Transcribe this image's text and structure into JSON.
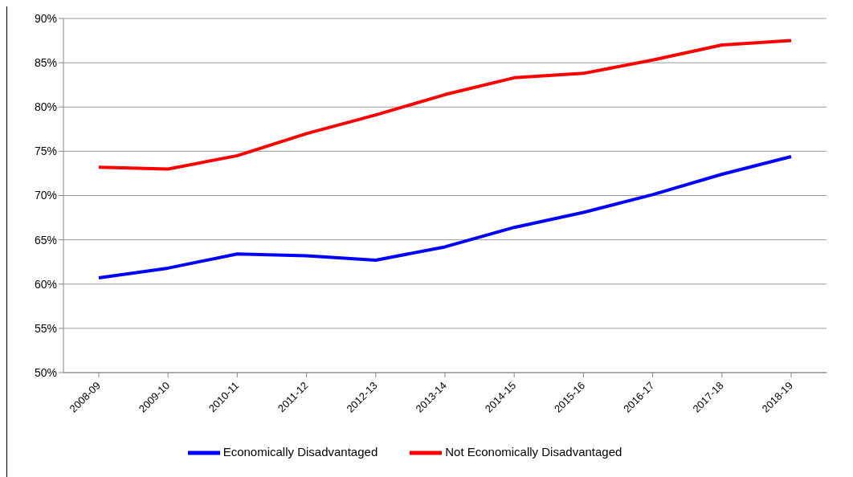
{
  "chart_data": {
    "type": "line",
    "categories": [
      "2008-09",
      "2009-10",
      "2010-11",
      "2011-12",
      "2012-13",
      "2013-14",
      "2014-15",
      "2015-16",
      "2016-17",
      "2017-18",
      "2018-19"
    ],
    "series": [
      {
        "name": "Economically Disadvantaged",
        "color": "#0000ff",
        "values": [
          60.7,
          61.8,
          63.4,
          63.2,
          62.7,
          64.2,
          66.4,
          68.1,
          70.1,
          72.4,
          74.4
        ]
      },
      {
        "name": "Not Economically Disadvantaged",
        "color": "#ff0000",
        "values": [
          73.2,
          73.0,
          74.5,
          77.0,
          79.1,
          81.4,
          83.3,
          83.8,
          85.3,
          87.0,
          87.5
        ]
      }
    ],
    "ylim": [
      50,
      90
    ],
    "yticks": [
      {
        "value": 50,
        "label": "50%"
      },
      {
        "value": 55,
        "label": "55%"
      },
      {
        "value": 60,
        "label": "60%"
      },
      {
        "value": 65,
        "label": "65%"
      },
      {
        "value": 70,
        "label": "70%"
      },
      {
        "value": 75,
        "label": "75%"
      },
      {
        "value": 80,
        "label": "80%"
      },
      {
        "value": 85,
        "label": "85%"
      },
      {
        "value": 90,
        "label": "90%"
      }
    ],
    "grid": "y",
    "legend": "bottom",
    "marker": "none",
    "line_style": "solid"
  }
}
